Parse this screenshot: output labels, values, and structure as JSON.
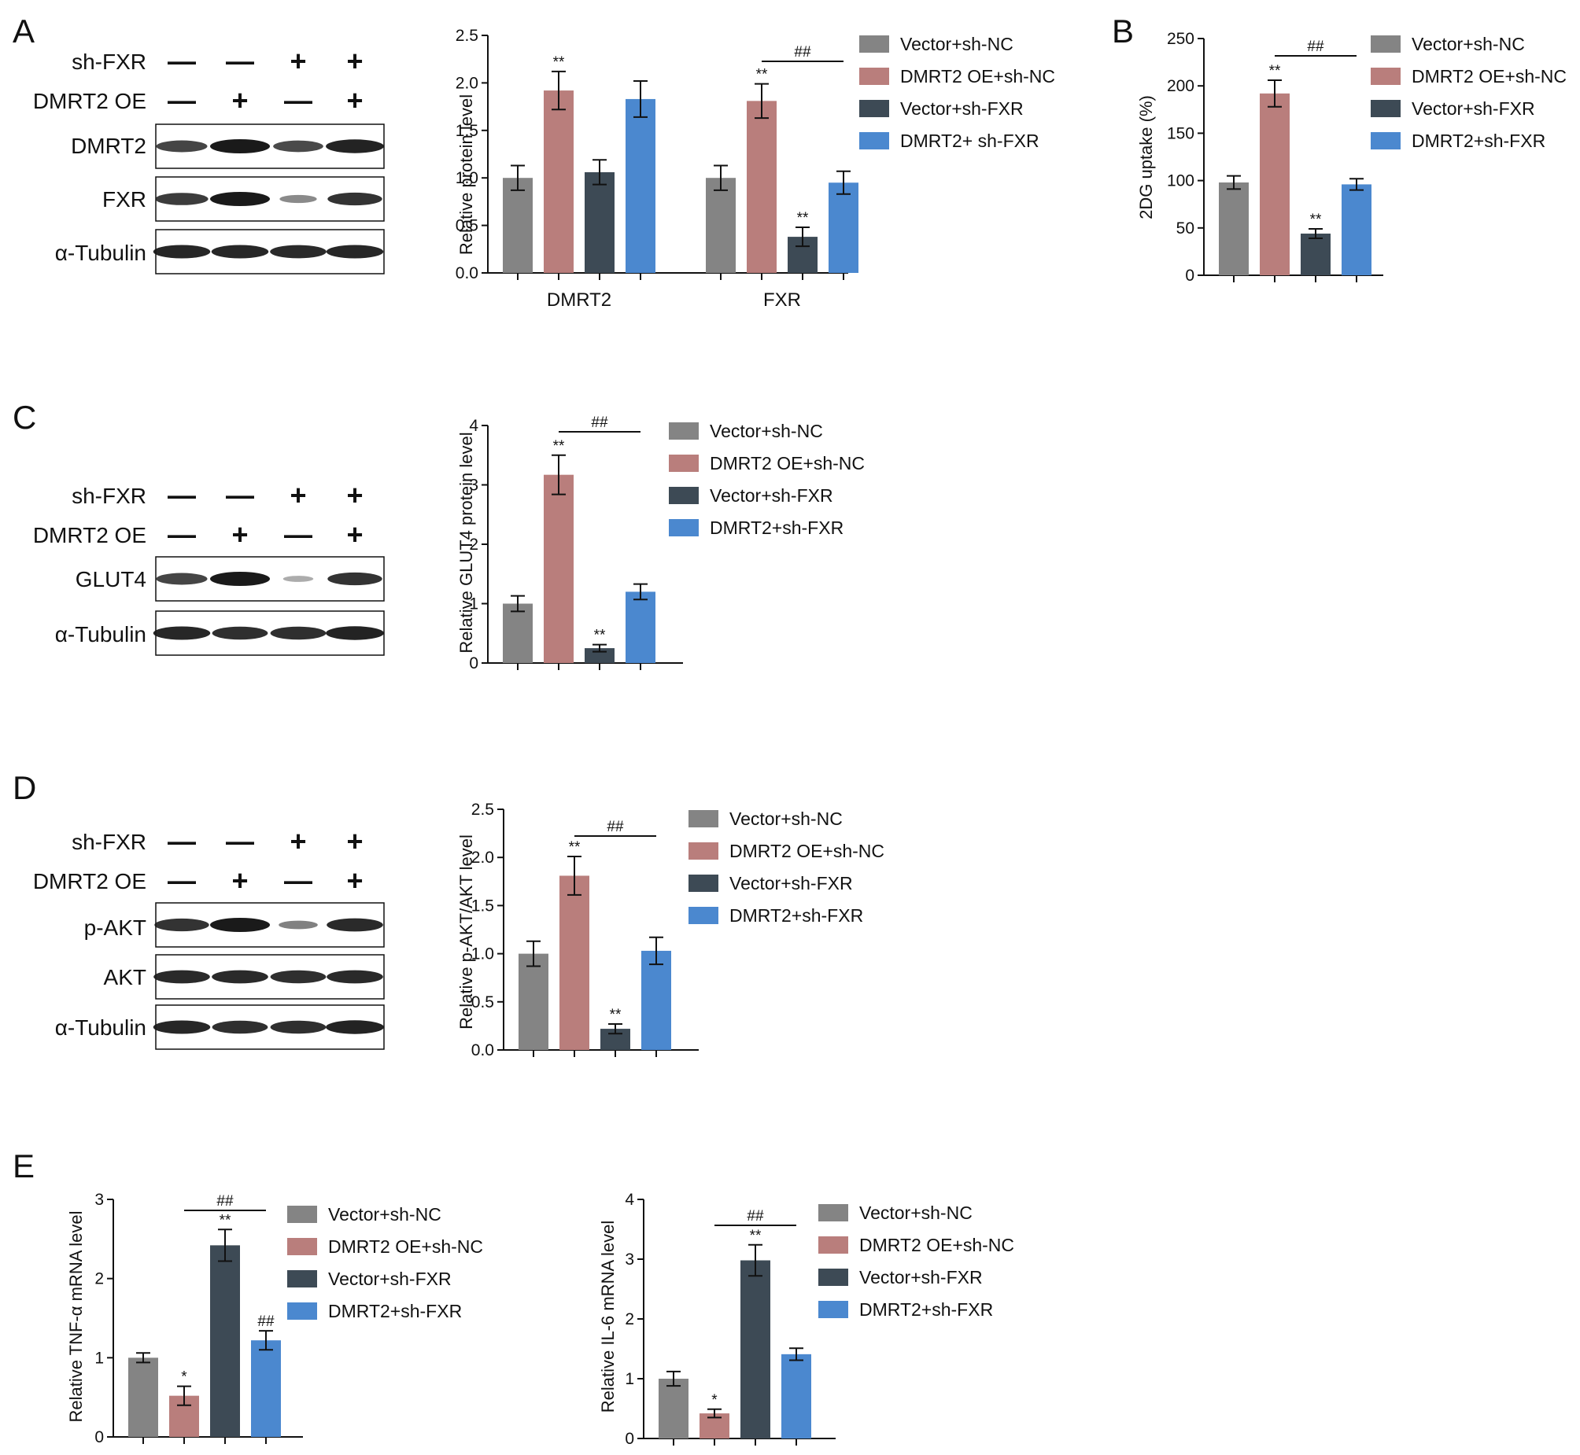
{
  "colors": {
    "vector_sh_nc": "#848484",
    "dmrt2_oe_sh_nc": "#b97e7c",
    "vector_sh_fxr": "#3d4a55",
    "dmrt2_sh_fxr": "#4b88cf",
    "axis": "#111111",
    "band": "#1a1a1a"
  },
  "labels": {
    "sh_fxr": "sh-FXR",
    "dmrt2_oe": "DMRT2 OE",
    "minus": "—",
    "plus": "+"
  },
  "panels": [
    {
      "label": "A"
    },
    {
      "label": "B"
    },
    {
      "label": "C"
    },
    {
      "label": "D"
    },
    {
      "label": "E"
    }
  ],
  "blots": [
    {
      "sh_fxr": [
        "—",
        "—",
        "+",
        "+"
      ],
      "dmrt2_oe": [
        "—",
        "+",
        "—",
        "+"
      ],
      "bands": [
        {
          "label": "DMRT2",
          "intensity": [
            0.75,
            1.0,
            0.72,
            0.95
          ]
        },
        {
          "label": "FXR",
          "intensity": [
            0.8,
            1.0,
            0.35,
            0.85
          ]
        },
        {
          "label": "α-Tubulin",
          "intensity": [
            0.92,
            0.92,
            0.9,
            0.92
          ]
        }
      ]
    },
    {
      "sh_fxr": [
        "—",
        "—",
        "+",
        "+"
      ],
      "dmrt2_oe": [
        "—",
        "+",
        "—",
        "+"
      ],
      "bands": [
        {
          "label": "GLUT4",
          "intensity": [
            0.75,
            1.0,
            0.15,
            0.85
          ]
        },
        {
          "label": "α-Tubulin",
          "intensity": [
            0.92,
            0.88,
            0.88,
            0.95
          ]
        }
      ]
    },
    {
      "sh_fxr": [
        "—",
        "—",
        "+",
        "+"
      ],
      "dmrt2_oe": [
        "—",
        "+",
        "—",
        "+"
      ],
      "bands": [
        {
          "label": "p-AKT",
          "intensity": [
            0.85,
            1.0,
            0.4,
            0.9
          ]
        },
        {
          "label": "AKT",
          "intensity": [
            0.9,
            0.9,
            0.88,
            0.9
          ]
        },
        {
          "label": "α-Tubulin",
          "intensity": [
            0.92,
            0.88,
            0.88,
            0.95
          ]
        }
      ]
    }
  ],
  "chart_data": [
    {
      "type": "bar",
      "ylabel": "Relative protein level",
      "ylim": [
        0,
        2.5
      ],
      "yticks": [
        "0.0",
        "0.5",
        "1.0",
        "1.5",
        "2.0",
        "2.5"
      ],
      "categories": [
        "DMRT2",
        "FXR"
      ],
      "series": [
        {
          "name": "Vector+sh-NC",
          "values": [
            1.0,
            1.0
          ],
          "errors": [
            0.13,
            0.13
          ],
          "sig": [
            "",
            ""
          ]
        },
        {
          "name": "DMRT2 OE+sh-NC",
          "values": [
            1.92,
            1.81
          ],
          "errors": [
            0.2,
            0.18
          ],
          "sig": [
            "**",
            "**"
          ]
        },
        {
          "name": "Vector+sh-FXR",
          "values": [
            1.06,
            0.38
          ],
          "errors": [
            0.13,
            0.1
          ],
          "sig": [
            "",
            "**"
          ]
        },
        {
          "name": "DMRT2+ sh-FXR",
          "values": [
            1.83,
            0.95
          ],
          "errors": [
            0.19,
            0.12
          ],
          "sig": [
            "",
            ""
          ]
        }
      ],
      "brackets": [
        {
          "text": "##"
        }
      ]
    },
    {
      "type": "bar",
      "ylabel": "2DG uptake (%)",
      "ylim": [
        0,
        250
      ],
      "yticks": [
        "0",
        "50",
        "100",
        "150",
        "200",
        "250"
      ],
      "series": [
        {
          "name": "Vector+sh-NC",
          "values": [
            98
          ],
          "errors": [
            7
          ],
          "sig": [
            ""
          ]
        },
        {
          "name": "DMRT2 OE+sh-NC",
          "values": [
            192
          ],
          "errors": [
            14
          ],
          "sig": [
            "**"
          ]
        },
        {
          "name": "Vector+sh-FXR",
          "values": [
            44
          ],
          "errors": [
            5
          ],
          "sig": [
            "**"
          ]
        },
        {
          "name": "DMRT2+sh-FXR",
          "values": [
            96
          ],
          "errors": [
            6
          ],
          "sig": [
            ""
          ]
        }
      ],
      "brackets": [
        {
          "text": "##"
        }
      ]
    },
    {
      "type": "bar",
      "ylabel": "Relative GLUT4 protein level",
      "ylim": [
        0,
        4
      ],
      "yticks": [
        "0",
        "1",
        "2",
        "3",
        "4"
      ],
      "series": [
        {
          "name": "Vector+sh-NC",
          "values": [
            1.0
          ],
          "errors": [
            0.13
          ],
          "sig": [
            ""
          ]
        },
        {
          "name": "DMRT2 OE+sh-NC",
          "values": [
            3.17
          ],
          "errors": [
            0.33
          ],
          "sig": [
            "**"
          ]
        },
        {
          "name": "Vector+sh-FXR",
          "values": [
            0.25
          ],
          "errors": [
            0.06
          ],
          "sig": [
            "**"
          ]
        },
        {
          "name": "DMRT2+sh-FXR",
          "values": [
            1.2
          ],
          "errors": [
            0.13
          ],
          "sig": [
            ""
          ]
        }
      ],
      "brackets": [
        {
          "text": "##"
        }
      ]
    },
    {
      "type": "bar",
      "ylabel": "Relative p-AKT/AKT level",
      "ylim": [
        0,
        2.5
      ],
      "yticks": [
        "0.0",
        "0.5",
        "1.0",
        "1.5",
        "2.0",
        "2.5"
      ],
      "series": [
        {
          "name": "Vector+sh-NC",
          "values": [
            1.0
          ],
          "errors": [
            0.13
          ],
          "sig": [
            ""
          ]
        },
        {
          "name": "DMRT2 OE+sh-NC",
          "values": [
            1.81
          ],
          "errors": [
            0.2
          ],
          "sig": [
            "**"
          ]
        },
        {
          "name": "Vector+sh-FXR",
          "values": [
            0.22
          ],
          "errors": [
            0.05
          ],
          "sig": [
            "**"
          ]
        },
        {
          "name": "DMRT2+sh-FXR",
          "values": [
            1.03
          ],
          "errors": [
            0.14
          ],
          "sig": [
            ""
          ]
        }
      ],
      "brackets": [
        {
          "text": "##"
        }
      ]
    },
    {
      "type": "bar",
      "ylabel": "Relative TNF-α  mRNA level",
      "ylim": [
        0,
        3
      ],
      "yticks": [
        "0",
        "1",
        "2",
        "3"
      ],
      "series": [
        {
          "name": "Vector+sh-NC",
          "values": [
            1.0
          ],
          "errors": [
            0.06
          ],
          "sig": [
            ""
          ]
        },
        {
          "name": "DMRT2 OE+sh-NC",
          "values": [
            0.52
          ],
          "errors": [
            0.12
          ],
          "sig": [
            "*"
          ]
        },
        {
          "name": "Vector+sh-FXR",
          "values": [
            2.42
          ],
          "errors": [
            0.2
          ],
          "sig": [
            "**"
          ]
        },
        {
          "name": "DMRT2+sh-FXR",
          "values": [
            1.22
          ],
          "errors": [
            0.12
          ],
          "sig": [
            "##"
          ]
        }
      ],
      "brackets": [
        {
          "text": "##"
        }
      ]
    },
    {
      "type": "bar",
      "ylabel": "Relative IL-6 mRNA level",
      "ylim": [
        0,
        4
      ],
      "yticks": [
        "0",
        "1",
        "2",
        "3",
        "4"
      ],
      "series": [
        {
          "name": "Vector+sh-NC",
          "values": [
            1.0
          ],
          "errors": [
            0.12
          ],
          "sig": [
            ""
          ]
        },
        {
          "name": "DMRT2 OE+sh-NC",
          "values": [
            0.42
          ],
          "errors": [
            0.07
          ],
          "sig": [
            "*"
          ]
        },
        {
          "name": "Vector+sh-FXR",
          "values": [
            2.98
          ],
          "errors": [
            0.26
          ],
          "sig": [
            "**"
          ]
        },
        {
          "name": "DMRT2+sh-FXR",
          "values": [
            1.41
          ],
          "errors": [
            0.1
          ],
          "sig": [
            ""
          ]
        }
      ],
      "brackets": [
        {
          "text": "##"
        }
      ]
    }
  ]
}
